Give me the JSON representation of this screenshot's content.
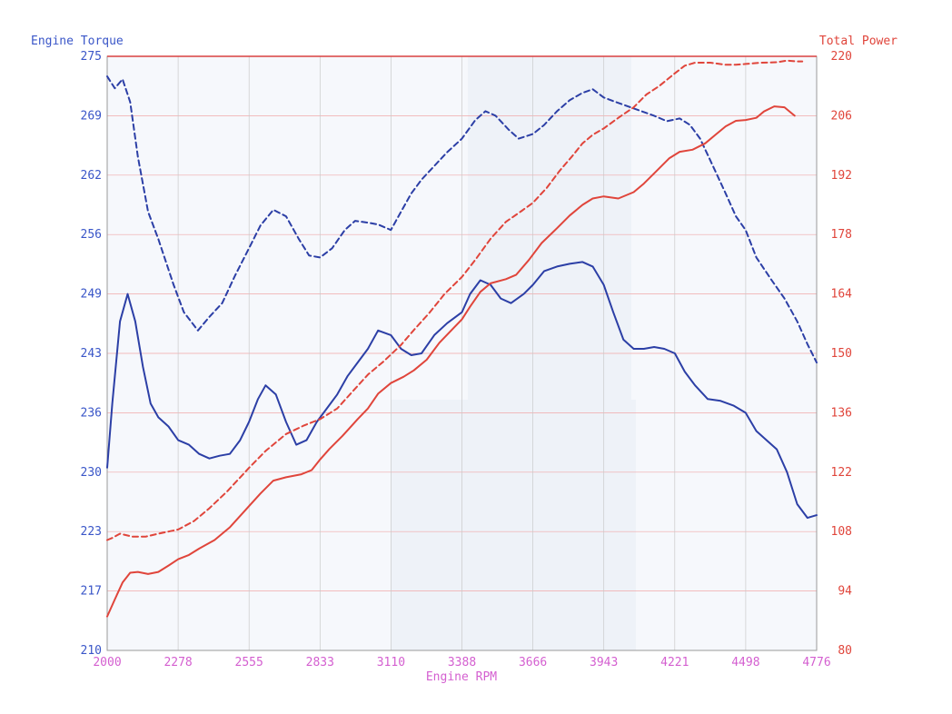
{
  "chart_data": {
    "type": "line",
    "x_axis": {
      "label": "Engine RPM",
      "range": [
        2000,
        4776
      ],
      "ticks": [
        "2000",
        "2278",
        "2555",
        "2833",
        "3110",
        "3388",
        "3666",
        "3943",
        "4221",
        "4498",
        "4776"
      ]
    },
    "y_left": {
      "label": "Engine Torque",
      "range": [
        210,
        275
      ],
      "ticks": [
        "275",
        "269",
        "262",
        "256",
        "249",
        "243",
        "236",
        "230",
        "223",
        "217",
        "210"
      ]
    },
    "y_right": {
      "label": "Total Power",
      "range": [
        80,
        220
      ],
      "ticks": [
        "220",
        "206",
        "192",
        "178",
        "164",
        "150",
        "136",
        "122",
        "108",
        "94",
        "80"
      ]
    },
    "grid": true,
    "series": [
      {
        "axis": "left",
        "style": "dashed",
        "color": "#2c3fa6",
        "points": [
          [
            2000,
            272.8
          ],
          [
            2030,
            271.5
          ],
          [
            2060,
            272.5
          ],
          [
            2090,
            270
          ],
          [
            2120,
            264
          ],
          [
            2160,
            258
          ],
          [
            2200,
            255
          ],
          [
            2260,
            250
          ],
          [
            2300,
            247
          ],
          [
            2355,
            245
          ],
          [
            2400,
            246.5
          ],
          [
            2450,
            248
          ],
          [
            2500,
            251
          ],
          [
            2555,
            254
          ],
          [
            2600,
            256.5
          ],
          [
            2650,
            258.2
          ],
          [
            2700,
            257.5
          ],
          [
            2750,
            255
          ],
          [
            2790,
            253.2
          ],
          [
            2833,
            253
          ],
          [
            2880,
            254
          ],
          [
            2930,
            256
          ],
          [
            2970,
            257
          ],
          [
            3020,
            256.8
          ],
          [
            3060,
            256.6
          ],
          [
            3110,
            256
          ],
          [
            3150,
            258
          ],
          [
            3190,
            260
          ],
          [
            3230,
            261.5
          ],
          [
            3280,
            263
          ],
          [
            3330,
            264.5
          ],
          [
            3388,
            266
          ],
          [
            3440,
            268
          ],
          [
            3480,
            269
          ],
          [
            3520,
            268.5
          ],
          [
            3570,
            267
          ],
          [
            3610,
            266
          ],
          [
            3666,
            266.5
          ],
          [
            3710,
            267.5
          ],
          [
            3760,
            269
          ],
          [
            3810,
            270.2
          ],
          [
            3860,
            271
          ],
          [
            3900,
            271.4
          ],
          [
            3943,
            270.5
          ],
          [
            3990,
            270
          ],
          [
            4040,
            269.5
          ],
          [
            4090,
            269
          ],
          [
            4140,
            268.5
          ],
          [
            4190,
            267.9
          ],
          [
            4240,
            268.2
          ],
          [
            4280,
            267.5
          ],
          [
            4320,
            266
          ],
          [
            4370,
            263
          ],
          [
            4420,
            260
          ],
          [
            4460,
            257.5
          ],
          [
            4498,
            256
          ],
          [
            4540,
            253
          ],
          [
            4600,
            250.5
          ],
          [
            4650,
            248.5
          ],
          [
            4700,
            246
          ],
          [
            4740,
            243.5
          ],
          [
            4776,
            241.5
          ]
        ]
      },
      {
        "axis": "left",
        "style": "solid",
        "color": "#2c3fa6",
        "points": [
          [
            2000,
            230
          ],
          [
            2020,
            237
          ],
          [
            2050,
            246
          ],
          [
            2080,
            249
          ],
          [
            2110,
            246
          ],
          [
            2140,
            241
          ],
          [
            2170,
            237
          ],
          [
            2200,
            235.5
          ],
          [
            2240,
            234.5
          ],
          [
            2278,
            233
          ],
          [
            2320,
            232.5
          ],
          [
            2360,
            231.5
          ],
          [
            2400,
            231
          ],
          [
            2440,
            231.3
          ],
          [
            2480,
            231.5
          ],
          [
            2520,
            233
          ],
          [
            2555,
            235
          ],
          [
            2590,
            237.5
          ],
          [
            2620,
            239
          ],
          [
            2660,
            238
          ],
          [
            2700,
            235
          ],
          [
            2740,
            232.5
          ],
          [
            2780,
            233
          ],
          [
            2820,
            235
          ],
          [
            2860,
            236.5
          ],
          [
            2900,
            238
          ],
          [
            2940,
            240
          ],
          [
            2980,
            241.5
          ],
          [
            3020,
            243
          ],
          [
            3060,
            245
          ],
          [
            3110,
            244.5
          ],
          [
            3150,
            243
          ],
          [
            3190,
            242.3
          ],
          [
            3230,
            242.5
          ],
          [
            3280,
            244.5
          ],
          [
            3330,
            245.8
          ],
          [
            3388,
            247
          ],
          [
            3420,
            249
          ],
          [
            3460,
            250.5
          ],
          [
            3500,
            250
          ],
          [
            3540,
            248.5
          ],
          [
            3580,
            248
          ],
          [
            3630,
            249
          ],
          [
            3666,
            250
          ],
          [
            3710,
            251.5
          ],
          [
            3760,
            252
          ],
          [
            3810,
            252.3
          ],
          [
            3860,
            252.5
          ],
          [
            3900,
            252
          ],
          [
            3943,
            250
          ],
          [
            3980,
            247
          ],
          [
            4020,
            244
          ],
          [
            4060,
            243
          ],
          [
            4100,
            243
          ],
          [
            4140,
            243.2
          ],
          [
            4180,
            243
          ],
          [
            4221,
            242.5
          ],
          [
            4260,
            240.5
          ],
          [
            4300,
            239
          ],
          [
            4350,
            237.5
          ],
          [
            4400,
            237.3
          ],
          [
            4450,
            236.8
          ],
          [
            4498,
            236
          ],
          [
            4540,
            234
          ],
          [
            4580,
            233
          ],
          [
            4620,
            232
          ],
          [
            4660,
            229.5
          ],
          [
            4700,
            226
          ],
          [
            4740,
            224.5
          ],
          [
            4776,
            224.8
          ]
        ]
      },
      {
        "axis": "right",
        "style": "dashed",
        "color": "#e0453b",
        "points": [
          [
            2000,
            106
          ],
          [
            2020,
            106.5
          ],
          [
            2050,
            107.5
          ],
          [
            2100,
            106.8
          ],
          [
            2150,
            106.8
          ],
          [
            2200,
            107.5
          ],
          [
            2278,
            108.5
          ],
          [
            2340,
            110.5
          ],
          [
            2400,
            113.5
          ],
          [
            2470,
            117.5
          ],
          [
            2555,
            123
          ],
          [
            2620,
            127
          ],
          [
            2700,
            131
          ],
          [
            2770,
            133
          ],
          [
            2833,
            134.5
          ],
          [
            2900,
            137
          ],
          [
            2960,
            141
          ],
          [
            3020,
            145
          ],
          [
            3080,
            148
          ],
          [
            3150,
            152
          ],
          [
            3200,
            155.5
          ],
          [
            3260,
            159.5
          ],
          [
            3320,
            164
          ],
          [
            3388,
            168
          ],
          [
            3440,
            172
          ],
          [
            3500,
            177
          ],
          [
            3560,
            181
          ],
          [
            3620,
            183.5
          ],
          [
            3666,
            185.5
          ],
          [
            3720,
            189
          ],
          [
            3770,
            193
          ],
          [
            3820,
            196.5
          ],
          [
            3860,
            199.5
          ],
          [
            3900,
            201.5
          ],
          [
            3943,
            203
          ],
          [
            4000,
            205.5
          ],
          [
            4060,
            208
          ],
          [
            4110,
            211
          ],
          [
            4160,
            213
          ],
          [
            4221,
            216
          ],
          [
            4260,
            217.8
          ],
          [
            4300,
            218.5
          ],
          [
            4360,
            218.5
          ],
          [
            4420,
            218
          ],
          [
            4460,
            218
          ],
          [
            4498,
            218.2
          ],
          [
            4560,
            218.5
          ],
          [
            4620,
            218.6
          ],
          [
            4660,
            219
          ],
          [
            4700,
            218.8
          ],
          [
            4720,
            218.8
          ]
        ]
      },
      {
        "axis": "right",
        "style": "solid",
        "color": "#e0453b",
        "points": [
          [
            2000,
            88
          ],
          [
            2030,
            92
          ],
          [
            2060,
            96
          ],
          [
            2090,
            98.3
          ],
          [
            2120,
            98.5
          ],
          [
            2160,
            98
          ],
          [
            2200,
            98.5
          ],
          [
            2240,
            100
          ],
          [
            2278,
            101.5
          ],
          [
            2320,
            102.5
          ],
          [
            2360,
            104
          ],
          [
            2420,
            106
          ],
          [
            2480,
            109
          ],
          [
            2555,
            114
          ],
          [
            2600,
            117
          ],
          [
            2650,
            120
          ],
          [
            2700,
            120.8
          ],
          [
            2760,
            121.5
          ],
          [
            2800,
            122.5
          ],
          [
            2833,
            125
          ],
          [
            2870,
            127.5
          ],
          [
            2920,
            130.5
          ],
          [
            2980,
            134.5
          ],
          [
            3020,
            137
          ],
          [
            3060,
            140.5
          ],
          [
            3110,
            143
          ],
          [
            3160,
            144.5
          ],
          [
            3200,
            146
          ],
          [
            3250,
            148.5
          ],
          [
            3300,
            152.5
          ],
          [
            3340,
            155
          ],
          [
            3388,
            158
          ],
          [
            3420,
            161
          ],
          [
            3460,
            164.5
          ],
          [
            3500,
            166.5
          ],
          [
            3560,
            167.5
          ],
          [
            3600,
            168.5
          ],
          [
            3650,
            172
          ],
          [
            3700,
            176
          ],
          [
            3760,
            179.5
          ],
          [
            3810,
            182.5
          ],
          [
            3860,
            185
          ],
          [
            3900,
            186.5
          ],
          [
            3943,
            187
          ],
          [
            4000,
            186.5
          ],
          [
            4060,
            188
          ],
          [
            4100,
            190
          ],
          [
            4150,
            193
          ],
          [
            4200,
            196
          ],
          [
            4240,
            197.5
          ],
          [
            4290,
            198
          ],
          [
            4340,
            199.5
          ],
          [
            4380,
            201.5
          ],
          [
            4420,
            203.5
          ],
          [
            4460,
            204.8
          ],
          [
            4498,
            205
          ],
          [
            4540,
            205.5
          ],
          [
            4570,
            207
          ],
          [
            4610,
            208.2
          ],
          [
            4650,
            208
          ],
          [
            4680,
            206.5
          ],
          [
            4690,
            206
          ]
        ]
      }
    ]
  }
}
